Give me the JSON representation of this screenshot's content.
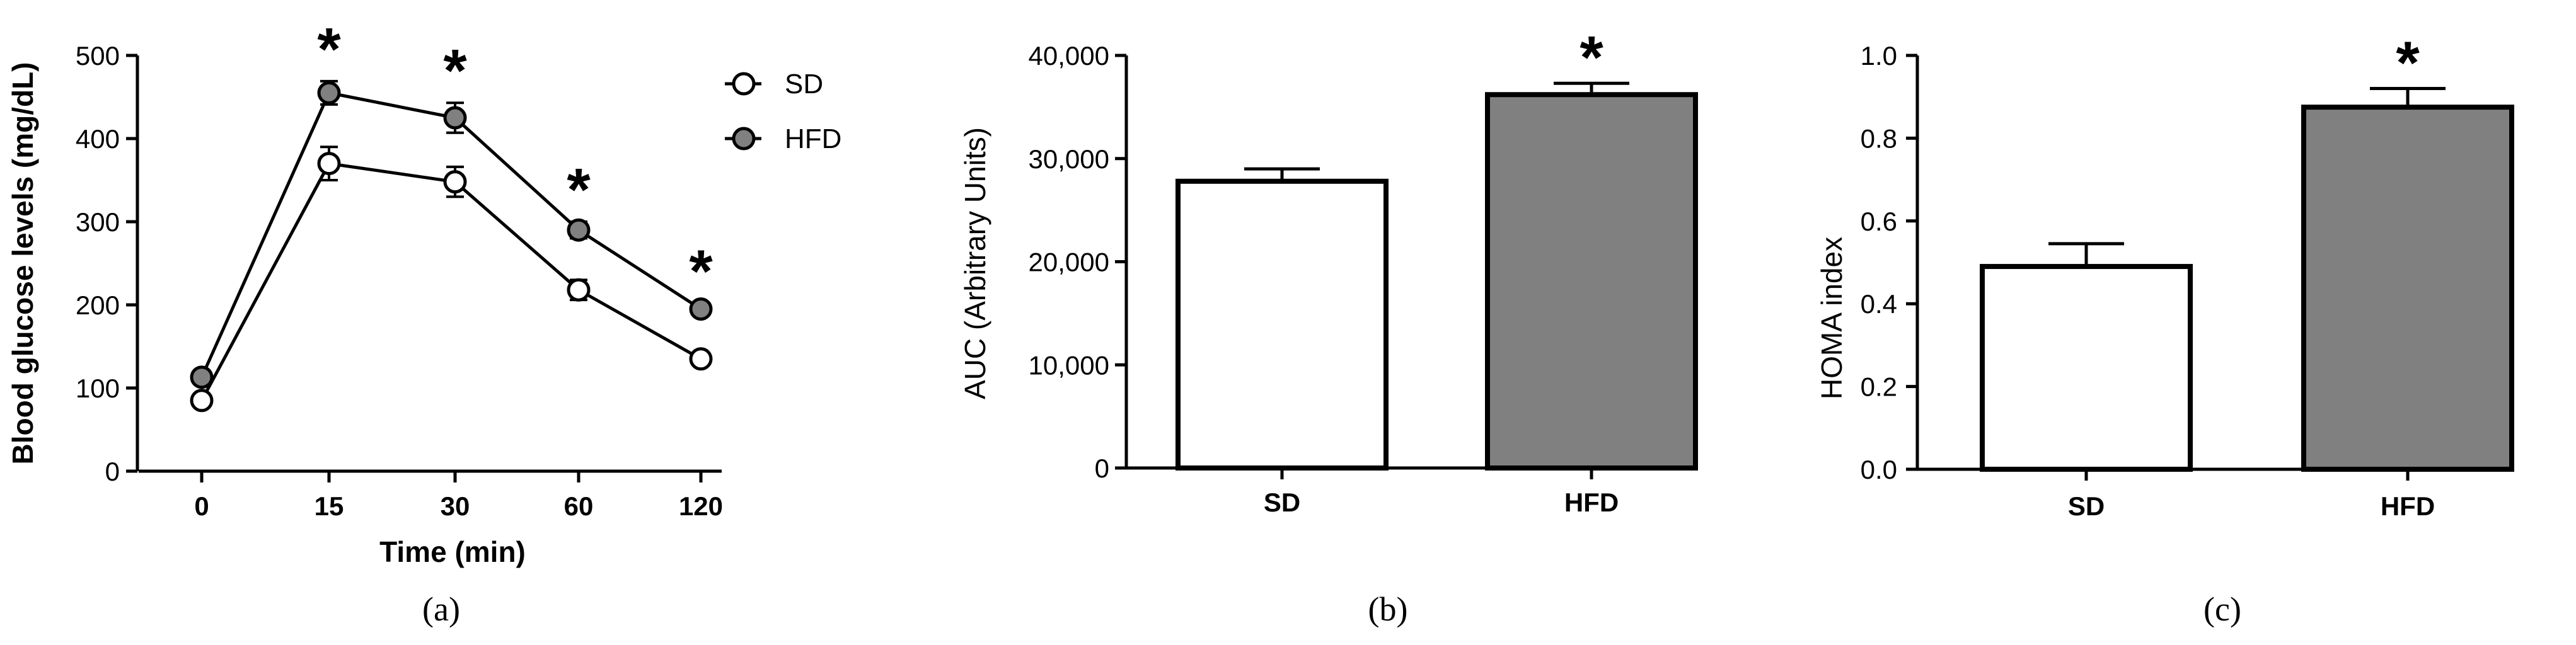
{
  "colors": {
    "sd_fill": "#ffffff",
    "hfd_fill": "#808080",
    "line": "#000000"
  },
  "panel_labels": [
    "(a)",
    "(b)",
    "(c)"
  ],
  "significance_marker": "*",
  "chart_data": [
    {
      "type": "line",
      "panel": "(a)",
      "xlabel": "Time (min)",
      "ylabel": "Blood glucose  levels (mg/dL)",
      "categories": [
        "0",
        "15",
        "30",
        "60",
        "120"
      ],
      "ylim": [
        0,
        500
      ],
      "yticks": [
        "0",
        "100",
        "200",
        "300",
        "400",
        "500"
      ],
      "legend_position": "top-right",
      "series": [
        {
          "name": "SD",
          "values": [
            85,
            370,
            348,
            218,
            135
          ],
          "errors": [
            6,
            20,
            18,
            12,
            6
          ],
          "marker_fill": "#ffffff"
        },
        {
          "name": "HFD",
          "values": [
            113,
            455,
            425,
            290,
            195
          ],
          "errors": [
            6,
            14,
            18,
            10,
            7
          ],
          "marker_fill": "#808080"
        }
      ],
      "significant_indices": [
        1,
        2,
        3,
        4
      ]
    },
    {
      "type": "bar",
      "panel": "(b)",
      "xlabel": "",
      "ylabel": "AUC (Arbitrary Units)",
      "categories": [
        "SD",
        "HFD"
      ],
      "values": [
        27800,
        36200
      ],
      "errors": [
        1200,
        1100
      ],
      "fills": [
        "#ffffff",
        "#808080"
      ],
      "ylim": [
        0,
        40000
      ],
      "yticks": [
        "0",
        "10,000",
        "20,000",
        "30,000",
        "40,000"
      ],
      "significant_indices": [
        1
      ]
    },
    {
      "type": "bar",
      "panel": "(c)",
      "xlabel": "",
      "ylabel": "HOMA index",
      "categories": [
        "SD",
        "HFD"
      ],
      "values": [
        0.49,
        0.875
      ],
      "errors": [
        0.055,
        0.045
      ],
      "fills": [
        "#ffffff",
        "#808080"
      ],
      "ylim": [
        0,
        1.0
      ],
      "yticks": [
        "0.0",
        "0.2",
        "0.4",
        "0.6",
        "0.8",
        "1.0"
      ],
      "significant_indices": [
        1
      ]
    }
  ]
}
